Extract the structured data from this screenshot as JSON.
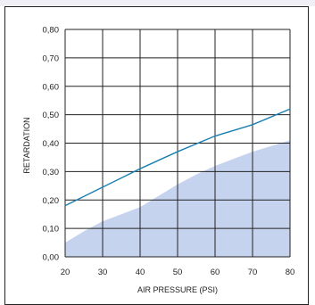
{
  "chart_data": {
    "type": "line",
    "xlabel": "AIR PRESSURE (PSI)",
    "ylabel": "RETARDATION",
    "xlim": [
      20,
      80
    ],
    "ylim": [
      0,
      0.8
    ],
    "x_ticks": [
      "20",
      "30",
      "40",
      "50",
      "60",
      "70",
      "80"
    ],
    "y_ticks": [
      "0,00",
      "0,10",
      "0,20",
      "0,30",
      "0,40",
      "0,50",
      "0,60",
      "0,70",
      "0,80"
    ],
    "grid": true,
    "series": [
      {
        "kind": "line",
        "color": "#1a7fb0",
        "x": [
          20,
          30,
          40,
          50,
          60,
          70,
          80
        ],
        "y": [
          0.18,
          0.245,
          0.31,
          0.37,
          0.425,
          0.465,
          0.52
        ]
      },
      {
        "kind": "area",
        "color": "#c5d3ef",
        "x": [
          20,
          25,
          30,
          35,
          40,
          45,
          50,
          55,
          60,
          65,
          70,
          75,
          80
        ],
        "y": [
          0.05,
          0.09,
          0.125,
          0.15,
          0.175,
          0.215,
          0.255,
          0.29,
          0.32,
          0.345,
          0.37,
          0.39,
          0.41
        ]
      }
    ]
  }
}
